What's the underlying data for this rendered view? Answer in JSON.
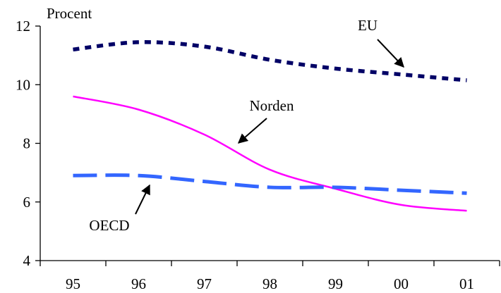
{
  "chart_data": {
    "type": "line",
    "ylabel": "Procent",
    "categories": [
      "95",
      "96",
      "97",
      "98",
      "99",
      "00",
      "01"
    ],
    "y_ticks": [
      4,
      6,
      8,
      10,
      12
    ],
    "ylim": [
      4,
      12
    ],
    "grid": false,
    "series": [
      {
        "name": "EU",
        "color": "#000066",
        "style": "dotted",
        "values": [
          11.2,
          11.45,
          11.3,
          10.85,
          10.55,
          10.35,
          10.15
        ]
      },
      {
        "name": "Norden",
        "color": "#ff00ff",
        "style": "solid",
        "values": [
          9.6,
          9.15,
          8.3,
          7.1,
          6.45,
          5.9,
          5.7
        ]
      },
      {
        "name": "OECD",
        "color": "#3366ff",
        "style": "dashed",
        "values": [
          6.9,
          6.9,
          6.7,
          6.5,
          6.5,
          6.4,
          6.3
        ]
      }
    ]
  }
}
